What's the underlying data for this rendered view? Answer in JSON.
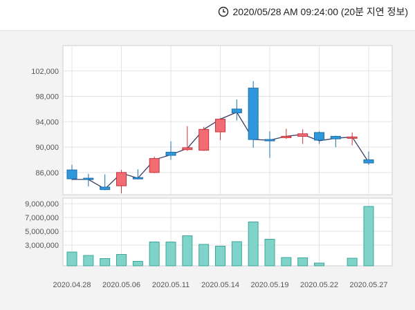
{
  "header": {
    "timestamp": "2020/05/28 AM 09:24:00 (20분 지연 정보)",
    "icon": "clock-icon"
  },
  "chart_data": {
    "type": "candlestick",
    "grid": true,
    "price": {
      "ylim": [
        82500,
        106000
      ],
      "yticks": [
        "102,000",
        "98,000",
        "94,000",
        "90,000",
        "86,000"
      ],
      "ytick_values": [
        102000,
        98000,
        94000,
        90000,
        86000
      ]
    },
    "volume": {
      "ylim": [
        0,
        9800000
      ],
      "yticks": [
        "9,000,000",
        "7,000,000",
        "5,000,000",
        "3,000,000"
      ],
      "ytick_values": [
        9000000,
        7000000,
        5000000,
        3000000
      ]
    },
    "xticks": [
      {
        "label": "2020.04.28",
        "index": 0
      },
      {
        "label": "2020.05.06",
        "index": 3
      },
      {
        "label": "2020.05.11",
        "index": 6
      },
      {
        "label": "2020.05.14",
        "index": 9
      },
      {
        "label": "2020.05.19",
        "index": 12
      },
      {
        "label": "2020.05.22",
        "index": 15
      },
      {
        "label": "2020.05.27",
        "index": 18
      }
    ],
    "colors": {
      "up": "#f26d73",
      "down": "#2f98db",
      "up_edge": "#c8323b",
      "down_edge": "#1c6ea8",
      "volume": "#7fd3c8",
      "volume_edge": "#3aa79a",
      "line": "#3b3f63"
    },
    "candles": [
      {
        "open": 86400,
        "close": 85000,
        "high": 87200,
        "low": 84800,
        "line": 84900
      },
      {
        "open": 85100,
        "close": 84900,
        "high": 85800,
        "low": 83800,
        "line": 84900
      },
      {
        "open": 83700,
        "close": 83300,
        "high": 85700,
        "low": 83200,
        "line": 83400
      },
      {
        "open": 83900,
        "close": 86000,
        "high": 86400,
        "low": 82700,
        "line": 85900
      },
      {
        "open": 85200,
        "close": 85000,
        "high": 86500,
        "low": 84900,
        "line": 85100
      },
      {
        "open": 86000,
        "close": 88200,
        "high": 88500,
        "low": 85900,
        "line": 88000
      },
      {
        "open": 89200,
        "close": 88700,
        "high": 90900,
        "low": 88000,
        "line": 88800
      },
      {
        "open": 89600,
        "close": 89900,
        "high": 93300,
        "low": 89400,
        "line": 89800
      },
      {
        "open": 89500,
        "close": 92800,
        "high": 93200,
        "low": 89400,
        "line": 92800
      },
      {
        "open": 92400,
        "close": 94400,
        "high": 94600,
        "low": 91100,
        "line": 94400
      },
      {
        "open": 96000,
        "close": 95400,
        "high": 97500,
        "low": 94200,
        "line": 95500
      },
      {
        "open": 99300,
        "close": 91200,
        "high": 100400,
        "low": 89900,
        "line": 91200
      },
      {
        "open": 91200,
        "close": 91000,
        "high": 92500,
        "low": 88300,
        "line": 91100
      },
      {
        "open": 91500,
        "close": 91700,
        "high": 92900,
        "low": 91300,
        "line": 91700
      },
      {
        "open": 91700,
        "close": 92100,
        "high": 92800,
        "low": 90500,
        "line": 92000
      },
      {
        "open": 92300,
        "close": 91100,
        "high": 92500,
        "low": 90500,
        "line": 91000
      },
      {
        "open": 91700,
        "close": 91300,
        "high": 91800,
        "low": 90000,
        "line": 91400
      },
      {
        "open": 91500,
        "close": 91600,
        "high": 92300,
        "low": 90300,
        "line": 91600
      },
      {
        "open": 88000,
        "close": 87500,
        "high": 89300,
        "low": 87200,
        "line": 87600
      }
    ],
    "volumes": [
      2000000,
      1500000,
      1050000,
      1650000,
      650000,
      3450000,
      3450000,
      4350000,
      3100000,
      2850000,
      3500000,
      6350000,
      3850000,
      1200000,
      1150000,
      400000,
      0,
      1100000,
      8600000
    ]
  }
}
